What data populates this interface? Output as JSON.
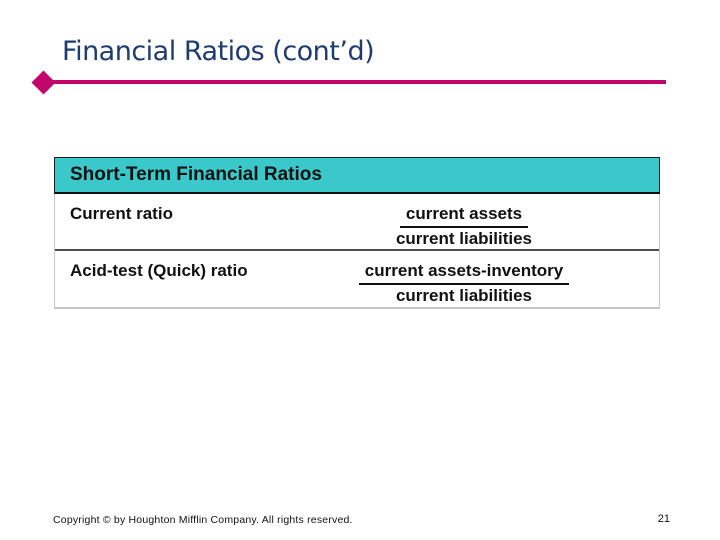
{
  "slide": {
    "title": "Financial Ratios (cont’d)",
    "footer": "Copyright © by Houghton Mifflin Company. All rights reserved.",
    "page_number": "21"
  },
  "table": {
    "header": "Short-Term Financial Ratios",
    "rows": [
      {
        "label": "Current ratio",
        "numerator": "current assets",
        "denominator": "current liabilities"
      },
      {
        "label": "Acid-test (Quick) ratio",
        "numerator": "current assets-inventory",
        "denominator": "current liabilities"
      }
    ]
  },
  "icons": {
    "bullet": "diamond-bullet-icon"
  },
  "colors": {
    "title_text": "#1F3C71",
    "accent": "#C2066B",
    "table_header_bg": "#3AC8CA",
    "table_header_text": "#111111",
    "body_text": "#111111",
    "background": "#FFFFFF"
  }
}
